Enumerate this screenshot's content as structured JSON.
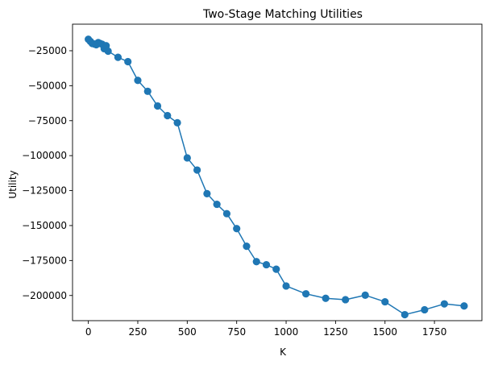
{
  "chart_data": {
    "type": "line",
    "title": "Two-Stage Matching Utilities",
    "xlabel": "K",
    "ylabel": "Utility",
    "xlim": [
      -80,
      1990
    ],
    "ylim": [
      -218000,
      -6000
    ],
    "xticks": [
      0,
      250,
      500,
      750,
      1000,
      1250,
      1500,
      1750
    ],
    "yticks": [
      -25000,
      -50000,
      -75000,
      -100000,
      -125000,
      -150000,
      -175000,
      -200000
    ],
    "xtick_labels": [
      "0",
      "250",
      "500",
      "750",
      "1000",
      "1250",
      "1500",
      "1750"
    ],
    "ytick_labels": [
      "−25000",
      "−50000",
      "−75000",
      "−100000",
      "−125000",
      "−150000",
      "−175000",
      "−200000"
    ],
    "grid": false,
    "series": [
      {
        "color": "#1f77b4",
        "marker": "circle",
        "points": [
          {
            "x": 0,
            "y": -16800
          },
          {
            "x": 10,
            "y": -18300
          },
          {
            "x": 20,
            "y": -19800
          },
          {
            "x": 30,
            "y": -20200
          },
          {
            "x": 40,
            "y": -20700
          },
          {
            "x": 50,
            "y": -19200
          },
          {
            "x": 60,
            "y": -19800
          },
          {
            "x": 70,
            "y": -20400
          },
          {
            "x": 80,
            "y": -23500
          },
          {
            "x": 90,
            "y": -21400
          },
          {
            "x": 100,
            "y": -25300
          },
          {
            "x": 150,
            "y": -29700
          },
          {
            "x": 200,
            "y": -32800
          },
          {
            "x": 250,
            "y": -46200
          },
          {
            "x": 300,
            "y": -54000
          },
          {
            "x": 350,
            "y": -64500
          },
          {
            "x": 400,
            "y": -71400
          },
          {
            "x": 450,
            "y": -76500
          },
          {
            "x": 500,
            "y": -101600
          },
          {
            "x": 550,
            "y": -110300
          },
          {
            "x": 600,
            "y": -127200
          },
          {
            "x": 650,
            "y": -134800
          },
          {
            "x": 700,
            "y": -141500
          },
          {
            "x": 750,
            "y": -152200
          },
          {
            "x": 800,
            "y": -164800
          },
          {
            "x": 850,
            "y": -175800
          },
          {
            "x": 900,
            "y": -178000
          },
          {
            "x": 950,
            "y": -181200
          },
          {
            "x": 1000,
            "y": -193200
          },
          {
            "x": 1100,
            "y": -198800
          },
          {
            "x": 1200,
            "y": -202000
          },
          {
            "x": 1300,
            "y": -203000
          },
          {
            "x": 1400,
            "y": -199800
          },
          {
            "x": 1500,
            "y": -204500
          },
          {
            "x": 1600,
            "y": -213700
          },
          {
            "x": 1700,
            "y": -210200
          },
          {
            "x": 1800,
            "y": -206000
          },
          {
            "x": 1900,
            "y": -207500
          }
        ]
      }
    ]
  }
}
